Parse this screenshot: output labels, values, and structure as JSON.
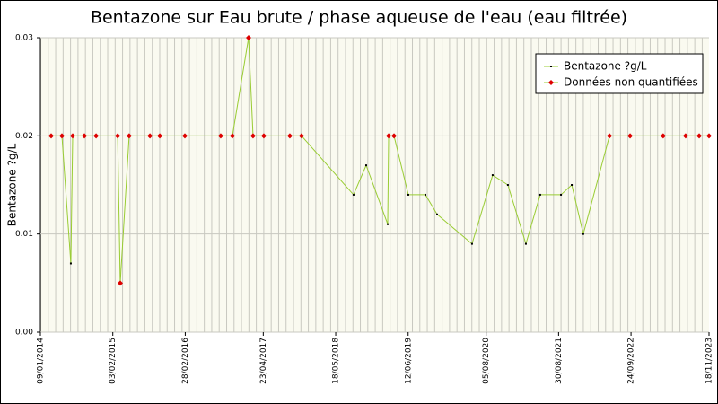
{
  "chart_data": {
    "type": "line",
    "title": "Bentazone sur Eau brute / phase aqueuse de l'eau (eau filtrée)",
    "y_label": "Bentazone ?g/L",
    "x": [
      "2014-03-08",
      "2014-05-05",
      "2014-06-22",
      "2014-07-02",
      "2014-09-03",
      "2014-11-05",
      "2015-03-01",
      "2015-03-15",
      "2015-05-02",
      "2015-08-22",
      "2015-10-14",
      "2016-02-26",
      "2016-09-06",
      "2016-11-08",
      "2017-02-03",
      "2017-02-27",
      "2017-04-26",
      "2017-09-13",
      "2017-11-15",
      "2018-08-22",
      "2018-10-29",
      "2019-02-22",
      "2019-02-27",
      "2019-03-28",
      "2019-06-13",
      "2019-09-13",
      "2019-11-15",
      "2020-05-21",
      "2020-09-09",
      "2020-11-30",
      "2021-03-07",
      "2021-05-23",
      "2021-09-12",
      "2021-11-09",
      "2022-01-10",
      "2022-05-31",
      "2022-09-19",
      "2023-03-16",
      "2023-07-15",
      "2023-09-26",
      "2023-11-18"
    ],
    "series": [
      {
        "name": "Bentazone ?g/L",
        "color": "#000000",
        "line_color": "#99cc33",
        "values": [
          null,
          null,
          0.007,
          null,
          null,
          null,
          null,
          null,
          null,
          null,
          null,
          null,
          null,
          null,
          null,
          null,
          null,
          null,
          null,
          0.014,
          0.017,
          0.011,
          null,
          null,
          0.014,
          0.014,
          0.012,
          0.009,
          0.016,
          0.015,
          0.009,
          0.014,
          0.014,
          0.015,
          0.01,
          null,
          null,
          null,
          null,
          null,
          null
        ]
      },
      {
        "name": "Données non quantifiées",
        "color": "#dd0000",
        "values": [
          0.02,
          0.02,
          null,
          0.02,
          0.02,
          0.02,
          0.02,
          0.005,
          0.02,
          0.02,
          0.02,
          0.02,
          0.02,
          0.02,
          0.03,
          0.02,
          0.02,
          0.02,
          0.02,
          null,
          null,
          null,
          0.02,
          0.02,
          null,
          null,
          null,
          null,
          null,
          null,
          null,
          null,
          null,
          null,
          null,
          0.02,
          0.02,
          0.02,
          0.02,
          0.02,
          0.02
        ]
      }
    ],
    "xlim": [
      "2014-01-09",
      "2023-11-18"
    ],
    "xticks": [
      {
        "value": "2014-01-09",
        "label": "09/01/2014"
      },
      {
        "value": "2015-02-03",
        "label": "03/02/2015"
      },
      {
        "value": "2016-02-28",
        "label": "28/02/2016"
      },
      {
        "value": "2017-04-23",
        "label": "23/04/2017"
      },
      {
        "value": "2018-05-18",
        "label": "18/05/2018"
      },
      {
        "value": "2019-06-12",
        "label": "12/06/2019"
      },
      {
        "value": "2020-08-05",
        "label": "05/08/2020"
      },
      {
        "value": "2021-08-30",
        "label": "30/08/2021"
      },
      {
        "value": "2022-09-24",
        "label": "24/09/2022"
      },
      {
        "value": "2023-11-18",
        "label": "18/11/2023"
      }
    ],
    "ylim": [
      0,
      0.03
    ],
    "yticks": [
      {
        "value": 0,
        "label": "0.00"
      },
      0.01,
      0.02,
      0.03
    ],
    "grid": true,
    "legend": "upper right"
  }
}
